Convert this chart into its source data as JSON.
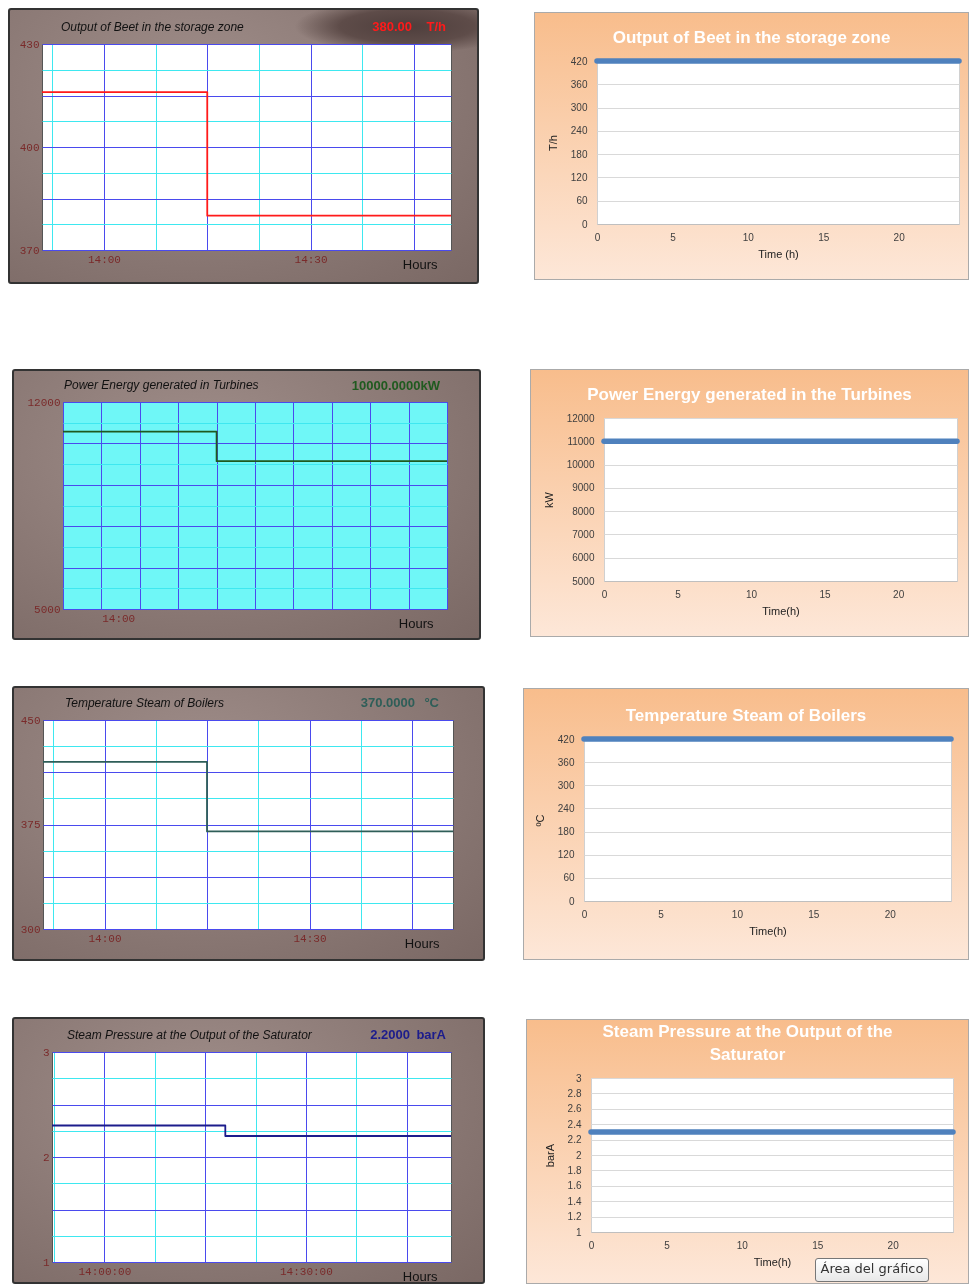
{
  "chart_data": [
    {
      "type": "step",
      "title": "Output of Beet in the storage zone",
      "xlabel": "Hours",
      "annotations": [
        "380.00",
        "T/h"
      ],
      "x": [
        13.85,
        14.25,
        14.84
      ],
      "series": [
        {
          "color": "#ff1a1a",
          "values": [
            416,
            380,
            380
          ]
        }
      ],
      "xlim": [
        13.85,
        14.84
      ],
      "ylim": [
        370,
        430
      ],
      "xticks": [
        {
          "value": 13.875,
          "label": null
        },
        {
          "value": 14,
          "label": "14:00"
        },
        {
          "value": 14.125,
          "label": null
        },
        {
          "value": 14.25,
          "label": null
        },
        {
          "value": 14.375,
          "label": null
        },
        {
          "value": 14.5,
          "label": "14:30"
        },
        {
          "value": 14.625,
          "label": null
        },
        {
          "value": 14.75,
          "label": null
        }
      ],
      "yticks": [
        370,
        {
          "value": 377.5,
          "label": null
        },
        {
          "value": 385,
          "label": null
        },
        {
          "value": 392.5,
          "label": null
        },
        400,
        {
          "value": 407.5,
          "label": null
        },
        {
          "value": 415,
          "label": null
        },
        {
          "value": 422.5,
          "label": null
        },
        430
      ],
      "grid": true
    },
    {
      "type": "step",
      "title": "Power Energy generated in Turbines",
      "xlabel": "Hours",
      "annotations": [
        "10000.0000kW",
        "14:00"
      ],
      "categories": [
        null,
        null,
        null,
        null,
        null,
        null,
        null,
        null,
        null,
        null,
        null
      ],
      "series": [
        {
          "color": "#1f5a1f",
          "values": [
            11000,
            11000,
            11000,
            11000,
            10000,
            10000,
            10000,
            10000,
            10000,
            10000,
            10000
          ]
        }
      ],
      "ylim": [
        5000,
        12000
      ],
      "yticks": [
        5000,
        {
          "value": 5700,
          "label": null
        },
        {
          "value": 6400,
          "label": null
        },
        {
          "value": 7100,
          "label": null
        },
        {
          "value": 7800,
          "label": null
        },
        {
          "value": 8500,
          "label": null
        },
        {
          "value": 9200,
          "label": null
        },
        {
          "value": 9900,
          "label": null
        },
        {
          "value": 10600,
          "label": null
        },
        {
          "value": 11300,
          "label": null
        },
        12000
      ],
      "grid": true
    },
    {
      "type": "step",
      "title": "Temperature Steam of Boilers",
      "xlabel": "Hours",
      "annotations": [
        "370.0000",
        "°C"
      ],
      "x": [
        13.85,
        14.25,
        14.85
      ],
      "series": [
        {
          "color": "#2e5e58",
          "values": [
            420,
            370,
            370
          ]
        }
      ],
      "xlim": [
        13.85,
        14.85
      ],
      "ylim": [
        300,
        450
      ],
      "xticks": [
        {
          "value": 13.875,
          "label": null
        },
        {
          "value": 14,
          "label": "14:00"
        },
        {
          "value": 14.125,
          "label": null
        },
        {
          "value": 14.25,
          "label": null
        },
        {
          "value": 14.375,
          "label": null
        },
        {
          "value": 14.5,
          "label": "14:30"
        },
        {
          "value": 14.625,
          "label": null
        },
        {
          "value": 14.75,
          "label": null
        }
      ],
      "yticks": [
        300,
        {
          "value": 318.75,
          "label": null
        },
        {
          "value": 337.5,
          "label": null
        },
        {
          "value": 356.25,
          "label": null
        },
        375,
        {
          "value": 393.75,
          "label": null
        },
        {
          "value": 412.5,
          "label": null
        },
        {
          "value": 431.25,
          "label": null
        },
        450
      ],
      "grid": true
    },
    {
      "type": "step",
      "title": "Steam Pressure at the Output of the Saturator",
      "xlabel": "Hours",
      "annotations": [
        "2.2000",
        "barA"
      ],
      "x": [
        13.87,
        14.3,
        14.86
      ],
      "series": [
        {
          "color": "#1c1c8c",
          "values": [
            2.3,
            2.2,
            2.2
          ]
        }
      ],
      "xlim": [
        13.87,
        14.86
      ],
      "ylim": [
        1,
        3
      ],
      "xticks": [
        {
          "value": 13.875,
          "label": null
        },
        {
          "value": 14,
          "label": "14:00:00"
        },
        {
          "value": 14.125,
          "label": null
        },
        {
          "value": 14.25,
          "label": null
        },
        {
          "value": 14.375,
          "label": null
        },
        {
          "value": 14.5,
          "label": "14:30:00"
        },
        {
          "value": 14.625,
          "label": null
        },
        {
          "value": 14.75,
          "label": null
        }
      ],
      "yticks": [
        1,
        {
          "value": 1.25,
          "label": null
        },
        {
          "value": 1.5,
          "label": null
        },
        {
          "value": 1.75,
          "label": null
        },
        2,
        {
          "value": 2.25,
          "label": null
        },
        {
          "value": 2.5,
          "label": null
        },
        {
          "value": 2.75,
          "label": null
        },
        3
      ],
      "grid": true
    },
    {
      "type": "line",
      "title": "Output of Beet in the storage zone",
      "xlabel": "Time (h)",
      "ylabel": "T/h",
      "x": [
        0,
        24
      ],
      "series": [
        {
          "color": "#4f81bd",
          "values": [
            420,
            420
          ]
        }
      ],
      "xlim": [
        0,
        24
      ],
      "ylim": [
        0,
        420
      ],
      "xticks": [
        0,
        5,
        10,
        15,
        20
      ],
      "yticks": [
        0,
        60,
        120,
        180,
        240,
        300,
        360,
        420
      ],
      "grid": "y"
    },
    {
      "type": "line",
      "title": "Power Energy generated in the Turbines",
      "xlabel": "Time(h)",
      "ylabel": "kW",
      "x": [
        0,
        24
      ],
      "series": [
        {
          "color": "#4f81bd",
          "values": [
            11000,
            11000
          ]
        }
      ],
      "xlim": [
        0,
        24
      ],
      "ylim": [
        5000,
        12000
      ],
      "xticks": [
        0,
        5,
        10,
        15,
        20
      ],
      "yticks": [
        5000,
        6000,
        7000,
        8000,
        9000,
        10000,
        11000,
        12000
      ],
      "grid": "y"
    },
    {
      "type": "line",
      "title": "Temperature Steam of Boilers",
      "xlabel": "Time(h)",
      "ylabel": "ºC",
      "x": [
        0,
        24
      ],
      "series": [
        {
          "color": "#4f81bd",
          "values": [
            420,
            420
          ]
        }
      ],
      "xlim": [
        0,
        24
      ],
      "ylim": [
        0,
        420
      ],
      "xticks": [
        0,
        5,
        10,
        15,
        20
      ],
      "yticks": [
        0,
        60,
        120,
        180,
        240,
        300,
        360,
        420
      ],
      "grid": "y"
    },
    {
      "type": "line",
      "title": "Steam Pressure at the Output of the Saturator",
      "xlabel": "Time(h)",
      "ylabel": "barA",
      "annotations": [
        "Área del gráfico"
      ],
      "x": [
        0,
        24
      ],
      "series": [
        {
          "color": "#4f81bd",
          "values": [
            2.3,
            2.3
          ]
        }
      ],
      "xlim": [
        0,
        24
      ],
      "ylim": [
        1,
        3
      ],
      "xticks": [
        0,
        5,
        10,
        15,
        20
      ],
      "yticks": [
        1,
        1.2,
        1.4,
        1.6,
        1.8,
        2,
        2.2,
        2.4,
        2.6,
        2.8,
        3
      ],
      "grid": "y"
    }
  ]
}
